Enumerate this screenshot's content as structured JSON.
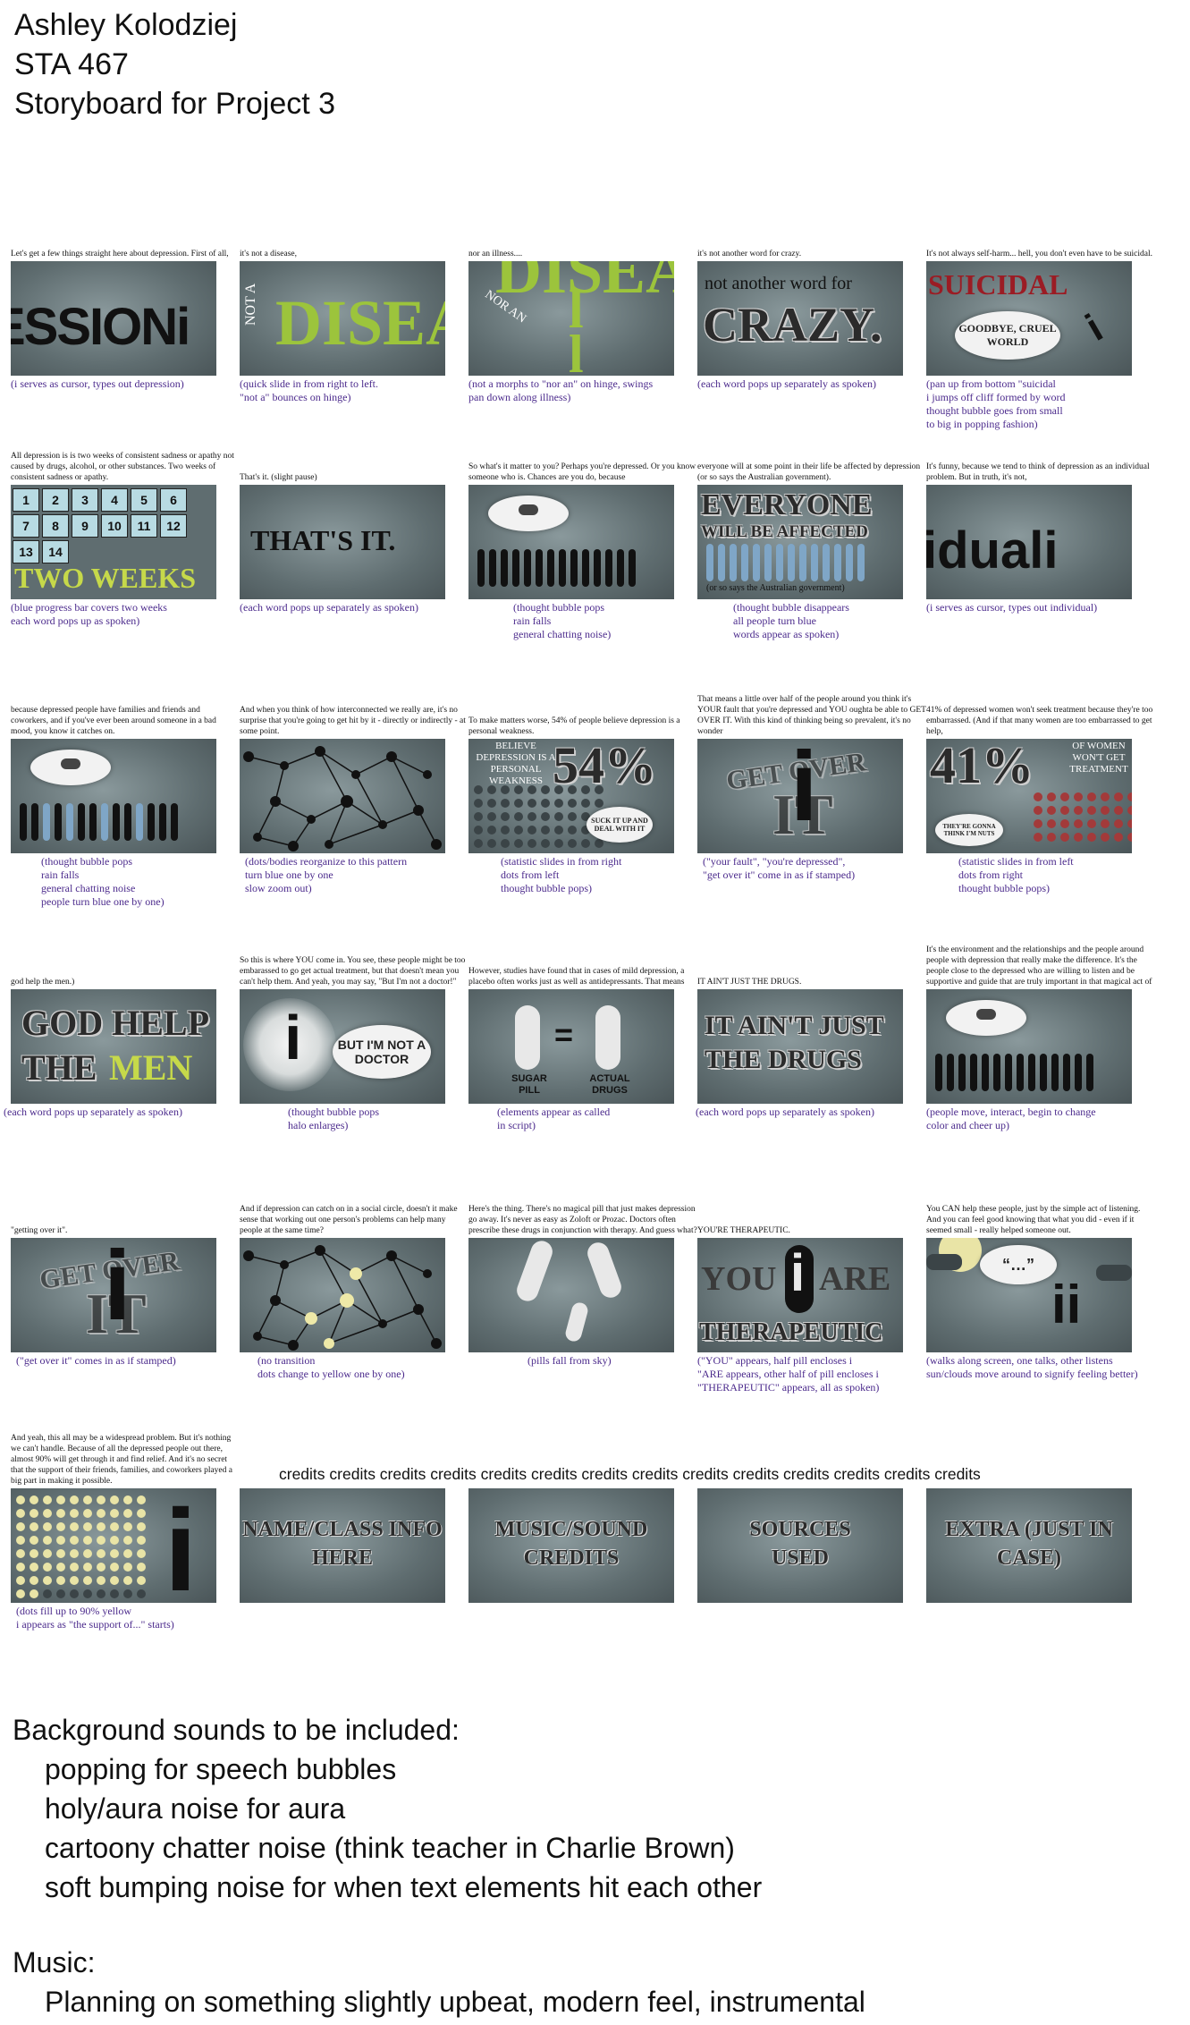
{
  "header": {
    "name": "Ashley Kolodziej",
    "course": "STA 467",
    "title": "Storyboard for Project 3"
  },
  "panels": [
    {
      "script": "Let's get a few things straight here about depression. First of all,",
      "art": "ESSIONi",
      "note": "(i serves as cursor, types out depression)"
    },
    {
      "script": "it's not a disease,",
      "art_a": "NOT A",
      "art_b": "DISEA",
      "note": "(quick slide in from right to left.\n\"not a\" bounces on hinge)"
    },
    {
      "script": "nor an illness....",
      "art_a": "DISEA",
      "art_b": "NOR AN",
      "note": "(not a morphs to \"nor an\" on hinge, swings\npan down along illness)"
    },
    {
      "script": "it's not another word for crazy.",
      "art_a": "not another word for",
      "art_b": "CRAZY.",
      "note": "(each word pops up separately as spoken)"
    },
    {
      "script": "It's not always self-harm... hell, you don't even have to be suicidal.",
      "art_a": "SUICIDAL",
      "art_b": "GOODBYE, CRUEL WORLD",
      "note": "(pan up from bottom \"suicidal\ni jumps off cliff formed by word\nthought bubble goes from small\nto big in popping fashion)"
    },
    {
      "script": "All depression is is two weeks of consistent sadness or apathy not caused by drugs, alcohol, or other substances. Two weeks of consistent sadness or apathy.",
      "cal": [
        "1",
        "2",
        "3",
        "4",
        "5",
        "6",
        "7",
        "8",
        "9",
        "10",
        "11",
        "12",
        "13",
        "14"
      ],
      "art_a": "TWO WEEKS",
      "note": "(blue progress bar covers two weeks\neach word pops up as spoken)"
    },
    {
      "script": "That's it. (slight pause)",
      "art_a": "THAT'S IT.",
      "note": "(each word pops up separately as spoken)"
    },
    {
      "script": "So what's it matter to you? Perhaps you're depressed. Or you know someone who is. Chances are you do, because",
      "note": "(thought bubble pops\nrain falls\ngeneral chatting noise)"
    },
    {
      "script": "everyone will at some point in their life be affected by depression (or so says the Australian government).",
      "art_a": "EVERYONE",
      "art_b": "WILL BE AFFECTED",
      "art_c": "(or so says the Australian government)",
      "note": "(thought bubble disappears\nall people turn blue\nwords appear as spoken)"
    },
    {
      "script": "It's funny, because we tend to think of depression as an individual problem. But in truth, it's not,",
      "art_a": "iduali",
      "note": "(i serves as cursor, types out individual)"
    },
    {
      "script": "because depressed people have families and friends and coworkers, and if you've ever been around someone in a bad mood, you know it catches on.",
      "note": "(thought bubble pops\nrain falls\ngeneral chatting noise\npeople turn blue one by one)"
    },
    {
      "script": "And when you think of how interconnected we really are, it's no surprise that you're going to get hit by it - directly or indirectly - at some point.",
      "note": "(dots/bodies reorganize to this pattern\nturn blue one by one\nslow zoom out)"
    },
    {
      "script": "To make matters worse, 54% of people believe depression is a personal weakness.",
      "art_a": "54%",
      "art_b": "BELIEVE DEPRESSION IS A PERSONAL WEAKNESS",
      "art_c": "SUCK IT UP AND DEAL WITH IT",
      "note": "(statistic slides in from right\ndots from left\nthought bubble pops)"
    },
    {
      "script": "That means a little over half of the people around you think it's YOUR fault that you're depressed and YOU oughta be able to GET OVER IT. With this kind of thinking being so prevalent, it's no wonder",
      "art_a": "GET OVER",
      "art_b": "IT",
      "note": "(\"your fault\", \"you're depressed\",\n\"get over it\" come in as if stamped)"
    },
    {
      "script": "41% of depressed women won't seek treatment because they're too embarrassed. (And if that many women are too embarrassed to get help,",
      "art_a": "41%",
      "art_b": "OF WOMEN WON'T GET TREATMENT",
      "art_c": "THEY'RE GONNA THINK I'M NUTS",
      "note": "(statistic slides in from left\ndots from right\nthought bubble pops)"
    },
    {
      "script": "god help the men.)",
      "art_a": "GOD HELP",
      "art_b": "THE",
      "art_c": "MEN",
      "note": "(each word pops up separately as spoken)"
    },
    {
      "script": "So this is where YOU come in. You see, these people might be too embarassed to go get actual treatment, but that doesn't mean you can't help them. And yeah, you may say, \"But I'm not a doctor!\"",
      "art_a": "BUT I'M NOT A DOCTOR",
      "note": "(thought bubble pops\nhalo enlarges)"
    },
    {
      "script": "However, studies have found that in cases of mild depression, a placebo often works just as well as antidepressants. That means",
      "art_a": "SUGAR PILL",
      "art_b": "ACTUAL DRUGS",
      "note": "(elements  appear as called\nin script)"
    },
    {
      "script": "IT AIN'T JUST THE DRUGS.",
      "art_a": "IT AIN'T JUST",
      "art_b": "THE DRUGS",
      "note": "(each word pops up separately as spoken)"
    },
    {
      "script": "It's the environment and the relationships and the people around people with depression that really make the difference. It's the people close to the depressed who are willing to listen and be supportive and guide that are truly important in that magical act of",
      "note": "(people move, interact, begin to change\ncolor and cheer up)"
    },
    {
      "script": "\"getting over it\".",
      "art_a": "GET OVER",
      "art_b": "IT",
      "note": "(\"get over it\" comes in as if stamped)"
    },
    {
      "script": "And if depression can catch on in a social circle, doesn't it make sense that working out one person's problems can help many people at the same time?",
      "note": "(no transition\ndots change to yellow one by one)"
    },
    {
      "script": "Here's the thing. There's no magical pill that just makes depression go away. It's never as easy as Zoloft or Prozac. Doctors often prescribe these drugs in conjunction with therapy. And guess what?",
      "note": "(pills fall from sky)"
    },
    {
      "script": "YOU'RE THERAPEUTIC.",
      "art_a": "YOU",
      "art_b": "ARE",
      "art_c": "THERAPEUTIC",
      "note": "(\"YOU\" appears, half pill encloses i\n\"ARE appears, other half of pill encloses i\n\"THERAPEUTIC\" appears, all as spoken)"
    },
    {
      "script": "You CAN help these people, just by the simple act of listening. And you can feel good knowing that what you did - even if it seemed small - really helped someone out.",
      "note": "(walks along screen, one talks, other listens\nsun/clouds move around to signify feeling better)"
    },
    {
      "script": "And yeah, this all may be a widespread problem. But it's nothing we can't handle. Because of all the depressed people out there, almost 90% will get through it and find relief. And it's no secret that the support of their friends, families, and coworkers played a big part in making it possible.",
      "note": "(dots fill up to 90% yellow\ni appears as \"the support of...\" starts)"
    },
    {
      "art_a": "NAME/CLASS INFO HERE"
    },
    {
      "art_a": "MUSIC/SOUND CREDITS"
    },
    {
      "art_a": "SOURCES USED"
    },
    {
      "art_a": "EXTRA (JUST IN CASE)"
    }
  ],
  "credits_banner": "credits credits credits credits credits credits credits credits credits credits credits credits credits credits",
  "sounds": {
    "heading": "Background sounds to be included:",
    "items": [
      "popping for speech bubbles",
      "holy/aura noise for aura",
      "cartoony chatter noise (think teacher in Charlie Brown)",
      "soft bumping noise for when text elements hit each other"
    ]
  },
  "music": {
    "heading": "Music:",
    "text": "Planning on something slightly upbeat, modern feel, instrumental"
  },
  "colors": {
    "note": "#4b2a8c",
    "green": "#9cc43c",
    "frame": "#5f6d70",
    "red": "#9b1c24",
    "yellow": "#e9e4a6"
  }
}
